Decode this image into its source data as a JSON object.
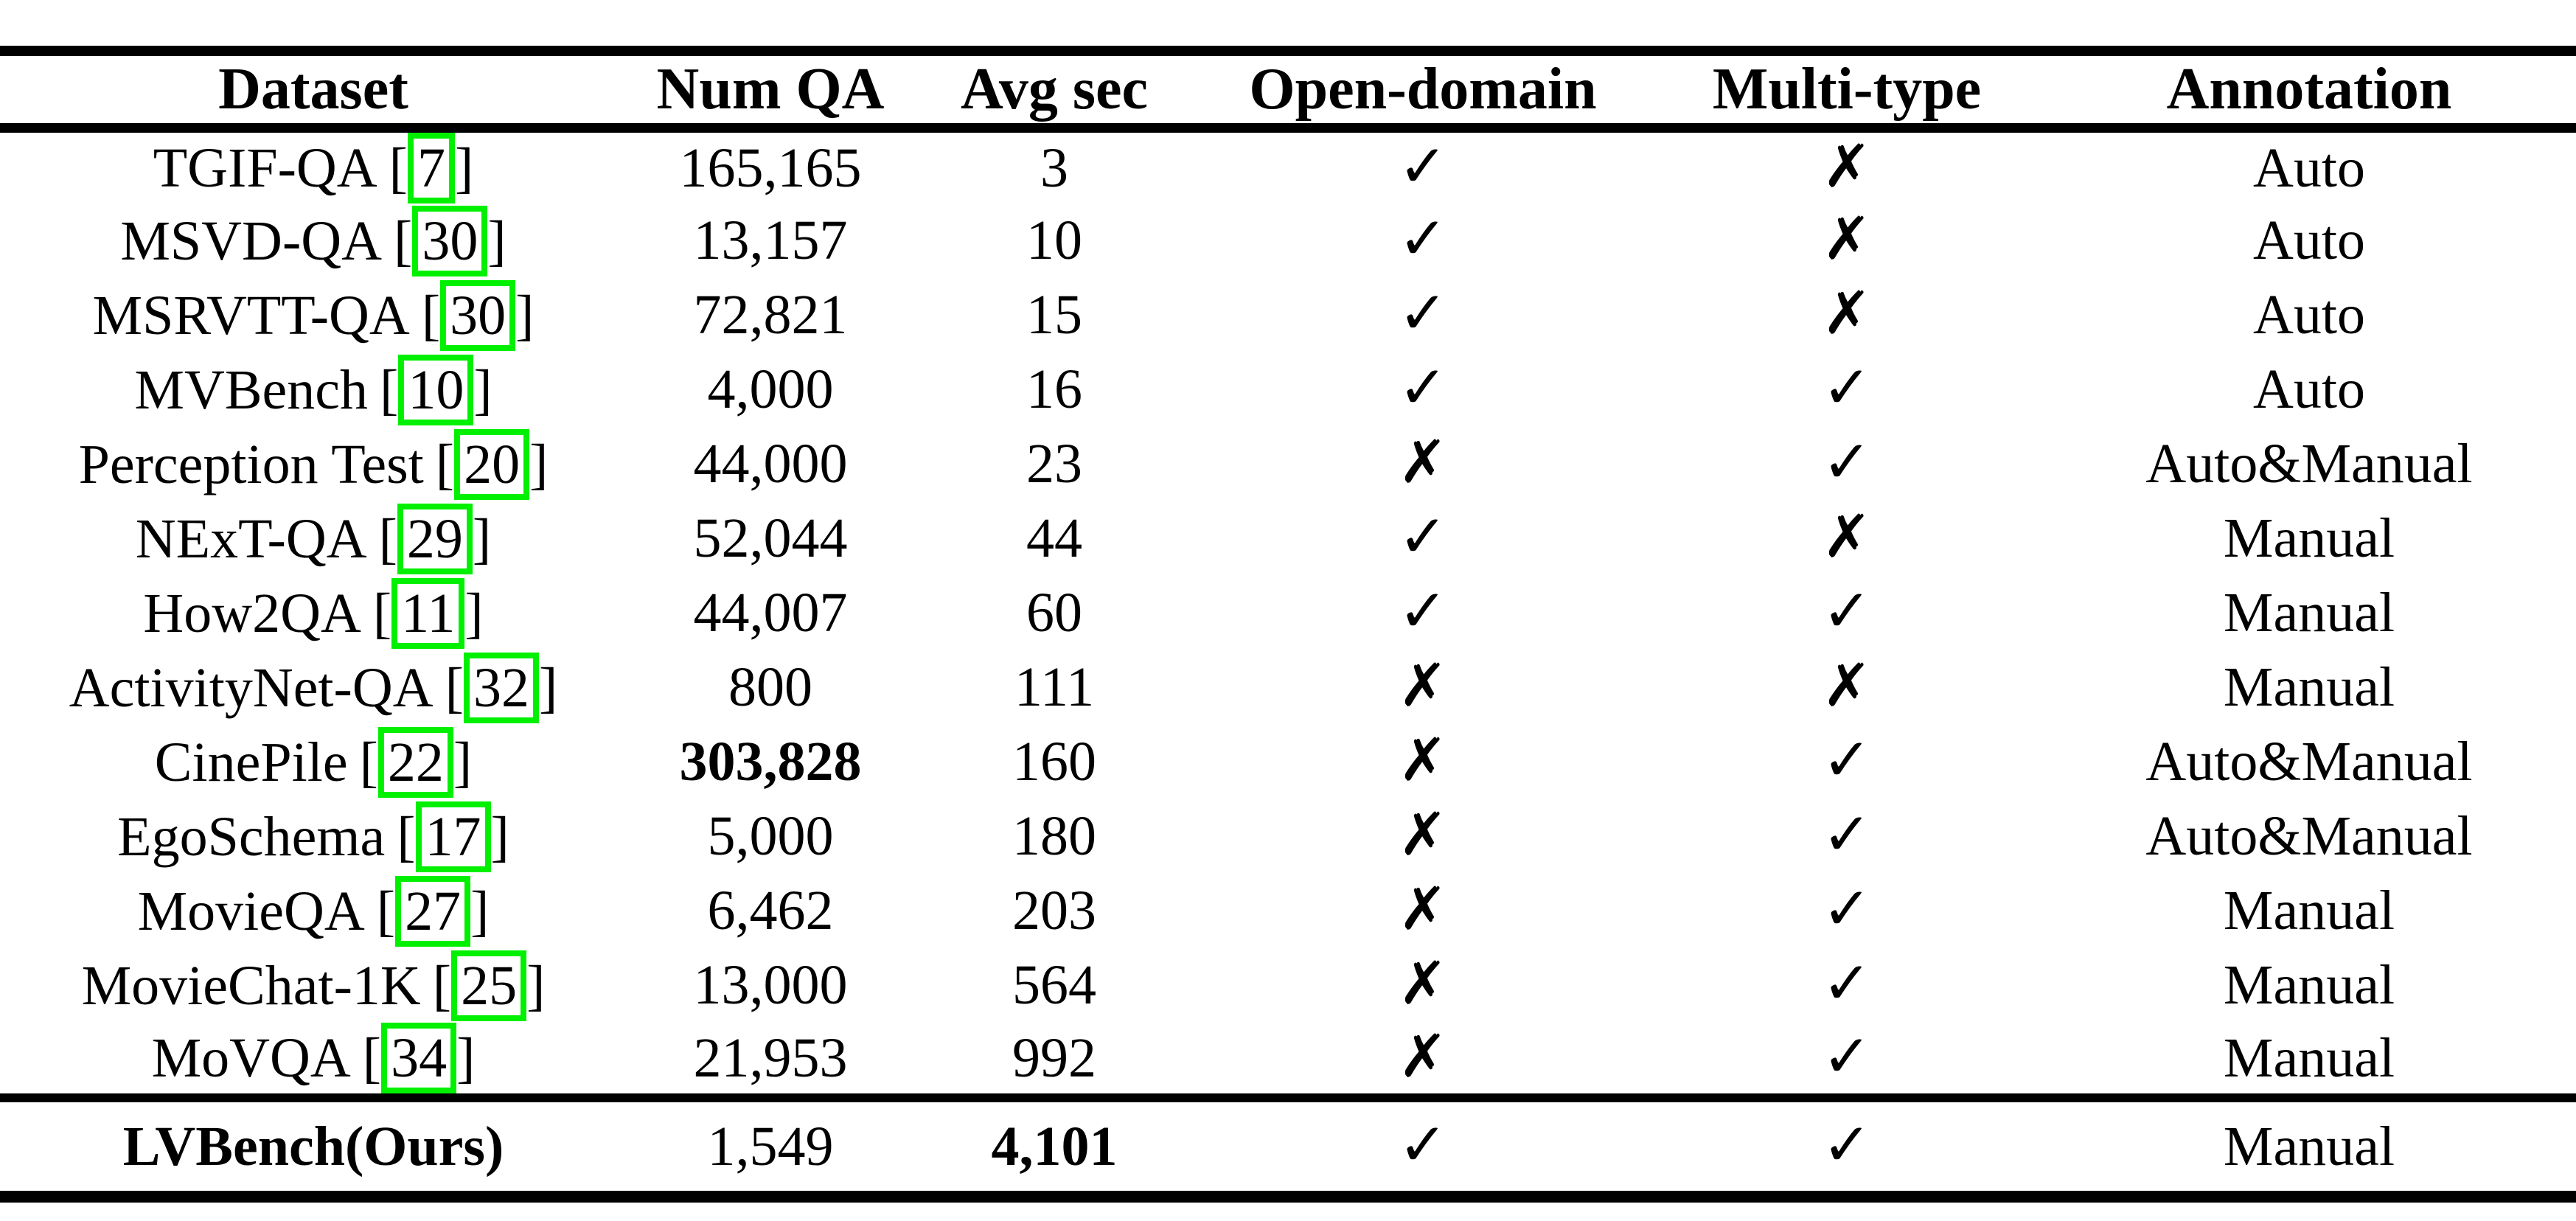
{
  "colors": {
    "citation_box_green": "#00f000",
    "text": "#000000",
    "background": "#ffffff",
    "rule": "#000000"
  },
  "icons": {
    "check": "✓",
    "cross": "✗"
  },
  "punct": {
    "open": "[",
    "close": "]"
  },
  "table": {
    "columns": [
      "Dataset",
      "Num QA",
      "Avg sec",
      "Open-domain",
      "Multi-type",
      "Annotation"
    ],
    "rows": [
      {
        "name": "TGIF-QA",
        "cite": "7",
        "num_qa": "165,165",
        "avg_sec": "3",
        "open_domain": "✓",
        "multi_type": "✗",
        "annotation": "Auto"
      },
      {
        "name": "MSVD-QA",
        "cite": "30",
        "num_qa": "13,157",
        "avg_sec": "10",
        "open_domain": "✓",
        "multi_type": "✗",
        "annotation": "Auto"
      },
      {
        "name": "MSRVTT-QA",
        "cite": "30",
        "num_qa": "72,821",
        "avg_sec": "15",
        "open_domain": "✓",
        "multi_type": "✗",
        "annotation": "Auto"
      },
      {
        "name": "MVBench",
        "cite": "10",
        "num_qa": "4,000",
        "avg_sec": "16",
        "open_domain": "✓",
        "multi_type": "✓",
        "annotation": "Auto"
      },
      {
        "name": "Perception Test",
        "cite": "20",
        "num_qa": "44,000",
        "avg_sec": "23",
        "open_domain": "✗",
        "multi_type": "✓",
        "annotation": "Auto&Manual"
      },
      {
        "name": "NExT-QA",
        "cite": "29",
        "num_qa": "52,044",
        "avg_sec": "44",
        "open_domain": "✓",
        "multi_type": "✗",
        "annotation": "Manual"
      },
      {
        "name": "How2QA",
        "cite": "11",
        "num_qa": "44,007",
        "avg_sec": "60",
        "open_domain": "✓",
        "multi_type": "✓",
        "annotation": "Manual"
      },
      {
        "name": "ActivityNet-QA",
        "cite": "32",
        "num_qa": "800",
        "avg_sec": "111",
        "open_domain": "✗",
        "multi_type": "✗",
        "annotation": "Manual"
      },
      {
        "name": "CinePile",
        "cite": "22",
        "num_qa": "303,828",
        "avg_sec": "160",
        "open_domain": "✗",
        "multi_type": "✓",
        "annotation": "Auto&Manual"
      },
      {
        "name": "EgoSchema",
        "cite": "17",
        "num_qa": "5,000",
        "avg_sec": "180",
        "open_domain": "✗",
        "multi_type": "✓",
        "annotation": "Auto&Manual"
      },
      {
        "name": "MovieQA",
        "cite": "27",
        "num_qa": "6,462",
        "avg_sec": "203",
        "open_domain": "✗",
        "multi_type": "✓",
        "annotation": "Manual"
      },
      {
        "name": "MovieChat-1K",
        "cite": "25",
        "num_qa": "13,000",
        "avg_sec": "564",
        "open_domain": "✗",
        "multi_type": "✓",
        "annotation": "Manual"
      },
      {
        "name": "MoVQA",
        "cite": "34",
        "num_qa": "21,953",
        "avg_sec": "992",
        "open_domain": "✗",
        "multi_type": "✓",
        "annotation": "Manual"
      }
    ],
    "final_row": {
      "name": "LVBench(Ours)",
      "num_qa": "1,549",
      "avg_sec": "4,101",
      "open_domain": "✓",
      "multi_type": "✓",
      "annotation": "Manual"
    }
  }
}
